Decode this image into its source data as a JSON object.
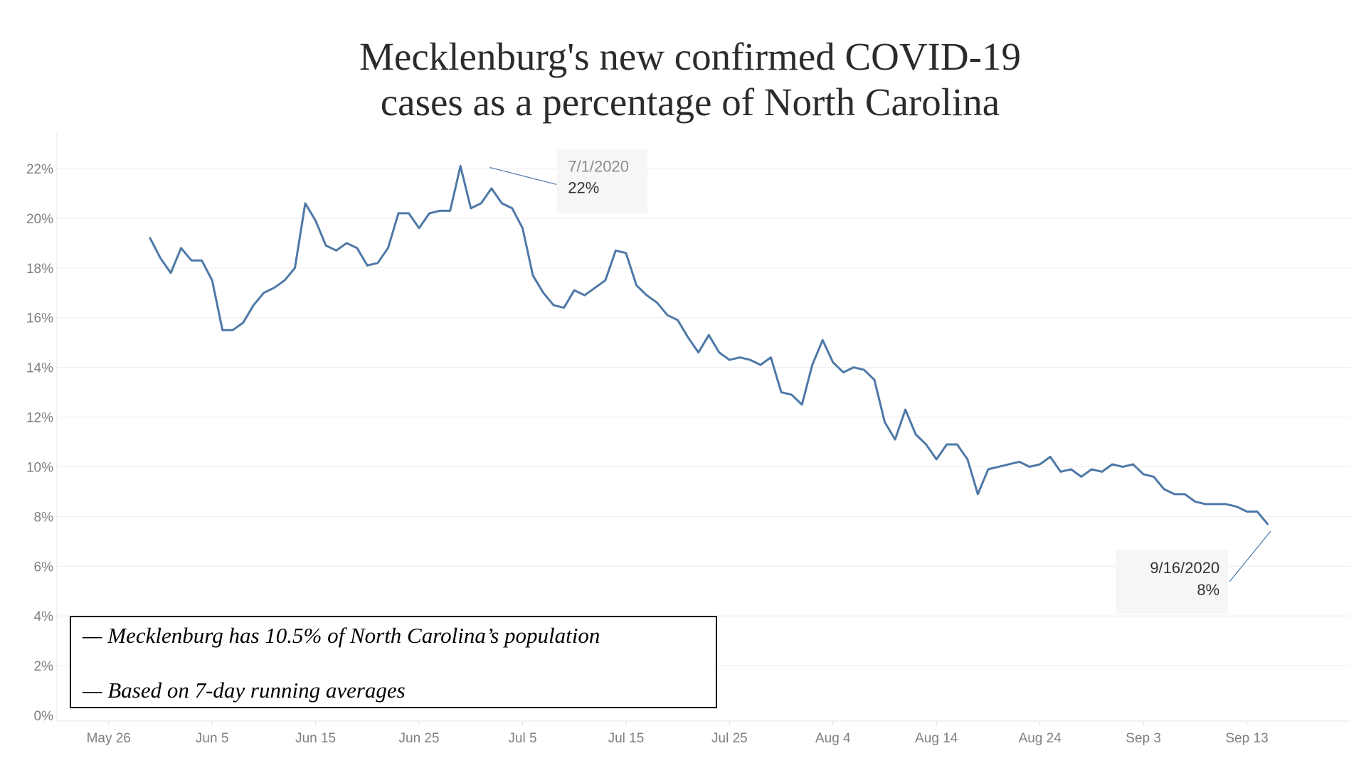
{
  "title_lines": [
    "Mecklenburg's new confirmed COVID-19",
    "cases as a percentage of North Carolina"
  ],
  "notes": [
    "— Mecklenburg has 10.5% of North Carolina’s population",
    "— Based on 7-day running averages"
  ],
  "colors": {
    "line": "#4e79a7",
    "grid": "#ececec",
    "tick_text": "#7f7f7f"
  },
  "chart_data": {
    "type": "line",
    "title": "Mecklenburg's new confirmed COVID-19 cases as a percentage of North Carolina",
    "xlabel": "",
    "ylabel": "",
    "x_start": "2020-05-30",
    "x_end": "2020-09-16",
    "xlim": [
      "2020-05-21",
      "2020-09-23"
    ],
    "ylim": [
      0,
      23.2
    ],
    "grid": true,
    "x_ticks": [
      {
        "date": "2020-05-26",
        "label": "May 26"
      },
      {
        "date": "2020-06-05",
        "label": "Jun 5"
      },
      {
        "date": "2020-06-15",
        "label": "Jun 15"
      },
      {
        "date": "2020-06-25",
        "label": "Jun 25"
      },
      {
        "date": "2020-07-05",
        "label": "Jul 5"
      },
      {
        "date": "2020-07-15",
        "label": "Jul 15"
      },
      {
        "date": "2020-07-25",
        "label": "Jul 25"
      },
      {
        "date": "2020-08-04",
        "label": "Aug 4"
      },
      {
        "date": "2020-08-14",
        "label": "Aug 14"
      },
      {
        "date": "2020-08-24",
        "label": "Aug 24"
      },
      {
        "date": "2020-09-03",
        "label": "Sep 3"
      },
      {
        "date": "2020-09-13",
        "label": "Sep 13"
      }
    ],
    "y_ticks": [
      {
        "value": 0,
        "label": "0%"
      },
      {
        "value": 2,
        "label": "2%"
      },
      {
        "value": 4,
        "label": "4%"
      },
      {
        "value": 6,
        "label": "6%"
      },
      {
        "value": 8,
        "label": "8%"
      },
      {
        "value": 10,
        "label": "10%"
      },
      {
        "value": 12,
        "label": "12%"
      },
      {
        "value": 14,
        "label": "14%"
      },
      {
        "value": 16,
        "label": "16%"
      },
      {
        "value": 18,
        "label": "18%"
      },
      {
        "value": 20,
        "label": "20%"
      },
      {
        "value": 22,
        "label": "22%"
      }
    ],
    "series": [
      {
        "values": [
          19.2,
          18.4,
          17.8,
          18.8,
          18.3,
          18.3,
          17.5,
          15.5,
          15.5,
          15.8,
          16.5,
          17.0,
          17.2,
          17.5,
          18.0,
          20.6,
          19.9,
          18.9,
          18.7,
          19.0,
          18.8,
          18.1,
          18.2,
          18.8,
          20.2,
          20.2,
          19.6,
          20.2,
          20.3,
          20.3,
          22.1,
          20.4,
          20.6,
          21.2,
          20.6,
          20.4,
          19.6,
          17.7,
          17.0,
          16.5,
          16.4,
          17.1,
          16.9,
          17.2,
          17.5,
          18.7,
          18.6,
          17.3,
          16.9,
          16.6,
          16.1,
          15.9,
          15.2,
          14.6,
          15.3,
          14.6,
          14.3,
          14.4,
          14.3,
          14.1,
          14.4,
          13.0,
          12.9,
          12.5,
          14.1,
          15.1,
          14.2,
          13.8,
          14.0,
          13.9,
          13.5,
          11.8,
          11.1,
          12.3,
          11.3,
          10.9,
          10.3,
          10.9,
          10.9,
          10.3,
          8.9,
          9.9,
          10.0,
          10.1,
          10.2,
          10.0,
          10.1,
          10.4,
          9.8,
          9.9,
          9.6,
          9.9,
          9.8,
          10.1,
          10.0,
          10.1,
          9.7,
          9.6,
          9.1,
          8.9,
          8.9,
          8.6,
          8.5,
          8.5,
          8.5,
          8.4,
          8.2,
          8.2,
          7.7
        ]
      }
    ],
    "annotations": [
      {
        "date_label": "7/1/2020",
        "value_label": "22%",
        "date": "2020-07-01",
        "value": 22.1
      },
      {
        "date_label": "9/16/2020",
        "value_label": "8%",
        "date": "2020-09-16",
        "value": 7.7
      }
    ]
  }
}
